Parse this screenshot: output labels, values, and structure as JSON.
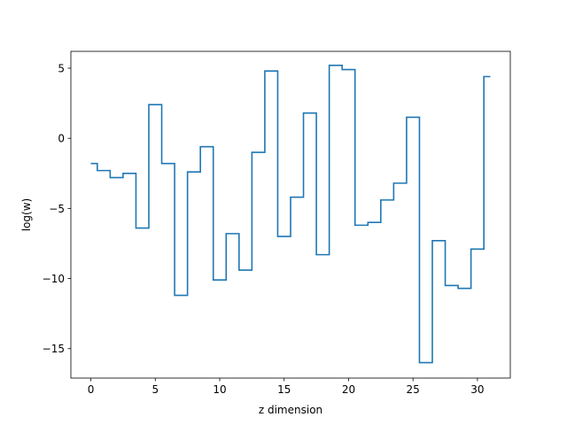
{
  "chart_data": {
    "type": "line",
    "drawstyle": "steps-mid",
    "title": "",
    "xlabel": "z dimension",
    "ylabel": "log(w)",
    "xlim": [
      -1.55,
      32.55
    ],
    "ylim": [
      -17.1,
      6.2
    ],
    "xticks": [
      0,
      5,
      10,
      15,
      20,
      25,
      30
    ],
    "yticks": [
      -15,
      -10,
      -5,
      0,
      5
    ],
    "ytick_labels": [
      "−15",
      "−10",
      "−5",
      "0",
      "5"
    ],
    "grid": false,
    "color": "#1f77b4",
    "x": [
      0,
      1,
      2,
      3,
      4,
      5,
      6,
      7,
      8,
      9,
      10,
      11,
      12,
      13,
      14,
      15,
      16,
      17,
      18,
      19,
      20,
      21,
      22,
      23,
      24,
      25,
      26,
      27,
      28,
      29,
      30,
      31
    ],
    "y": [
      -1.8,
      -2.3,
      -2.8,
      -2.5,
      -6.4,
      2.4,
      -1.8,
      -11.2,
      -2.4,
      -0.6,
      -10.1,
      -6.8,
      -9.4,
      -1.0,
      4.8,
      -7.0,
      -4.2,
      1.8,
      -8.3,
      5.2,
      4.9,
      -6.2,
      -6.0,
      -4.4,
      -3.2,
      1.5,
      -16.0,
      -7.3,
      -10.5,
      -10.7,
      -7.9,
      4.4
    ]
  }
}
